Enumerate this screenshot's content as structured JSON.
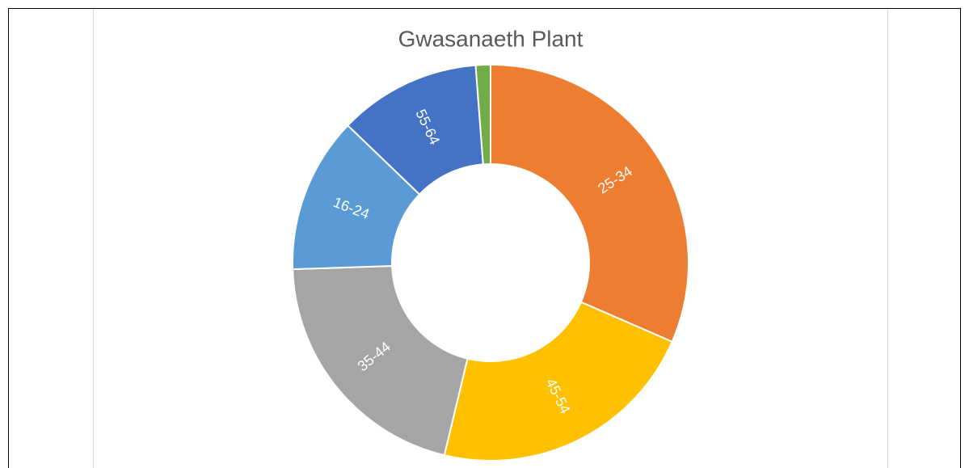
{
  "chart_data": {
    "type": "donut",
    "title": "Gwasanaeth Plant",
    "categories": [
      "25-34",
      "45-54",
      "35-44",
      "16-24",
      "55-64",
      null
    ],
    "values": [
      31.5,
      22.2,
      20.7,
      12.7,
      11.6,
      1.2
    ],
    "colors": [
      "#ED7D31",
      "#FFC000",
      "#A5A5A5",
      "#5B9BD5",
      "#4472C4",
      "#70AD47"
    ]
  }
}
